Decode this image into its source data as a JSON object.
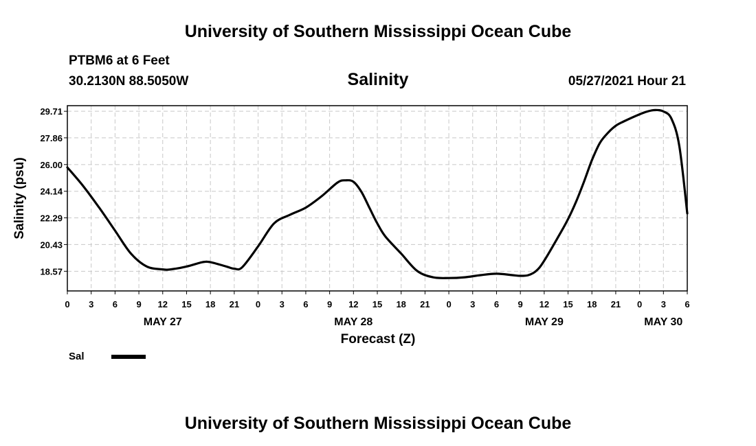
{
  "header": {
    "title": "University of Southern Mississippi Ocean Cube",
    "station": "PTBM6 at 6 Feet",
    "coords": "30.2130N  88.5050W",
    "date": "05/27/2021 Hour 21",
    "footer": "University of Southern Mississippi Ocean Cube"
  },
  "legend": {
    "label": "Sal",
    "color": "#000000"
  },
  "chart_data": {
    "type": "line",
    "title": "Salinity",
    "xlabel": "Forecast (Z)",
    "ylabel": "Salinity (psu)",
    "ylim": [
      17.2,
      30.1
    ],
    "yticks": [
      "29.71",
      "27.86",
      "26.00",
      "24.14",
      "22.29",
      "20.43",
      "18.57"
    ],
    "xlim": [
      0,
      78
    ],
    "xticks": [
      "0",
      "3",
      "6",
      "9",
      "12",
      "15",
      "18",
      "21",
      "0",
      "3",
      "6",
      "9",
      "12",
      "15",
      "18",
      "21",
      "0",
      "3",
      "6",
      "9",
      "12",
      "15",
      "18",
      "21",
      "0",
      "3",
      "6"
    ],
    "days": [
      {
        "label": "MAY 27",
        "hour": 12
      },
      {
        "label": "MAY 28",
        "hour": 36
      },
      {
        "label": "MAY 29",
        "hour": 60
      },
      {
        "label": "MAY 30",
        "hour": 75
      }
    ],
    "series": [
      {
        "name": "Sal",
        "color": "#000000",
        "x": [
          0,
          2,
          4,
          6,
          8,
          10,
          12,
          13,
          15,
          17,
          18,
          20,
          21,
          22,
          24,
          26,
          28,
          30,
          32,
          34,
          35,
          36,
          37,
          38,
          39,
          40,
          42,
          44,
          46,
          48,
          50,
          52,
          54,
          56,
          57,
          58,
          59,
          60,
          62,
          63,
          64,
          65,
          66,
          67,
          68,
          69,
          70,
          72,
          73,
          74,
          75,
          76,
          77,
          78
        ],
        "y": [
          25.8,
          24.5,
          23.0,
          21.4,
          19.8,
          18.9,
          18.7,
          18.7,
          18.9,
          19.2,
          19.2,
          18.9,
          18.75,
          18.85,
          20.3,
          21.9,
          22.5,
          23.0,
          23.8,
          24.75,
          24.9,
          24.8,
          24.1,
          23.0,
          21.9,
          21.0,
          19.8,
          18.6,
          18.15,
          18.1,
          18.15,
          18.3,
          18.4,
          18.3,
          18.25,
          18.3,
          18.6,
          19.3,
          21.2,
          22.2,
          23.4,
          24.8,
          26.3,
          27.5,
          28.2,
          28.7,
          29.0,
          29.5,
          29.7,
          29.8,
          29.7,
          29.2,
          27.3,
          22.6
        ]
      }
    ]
  }
}
